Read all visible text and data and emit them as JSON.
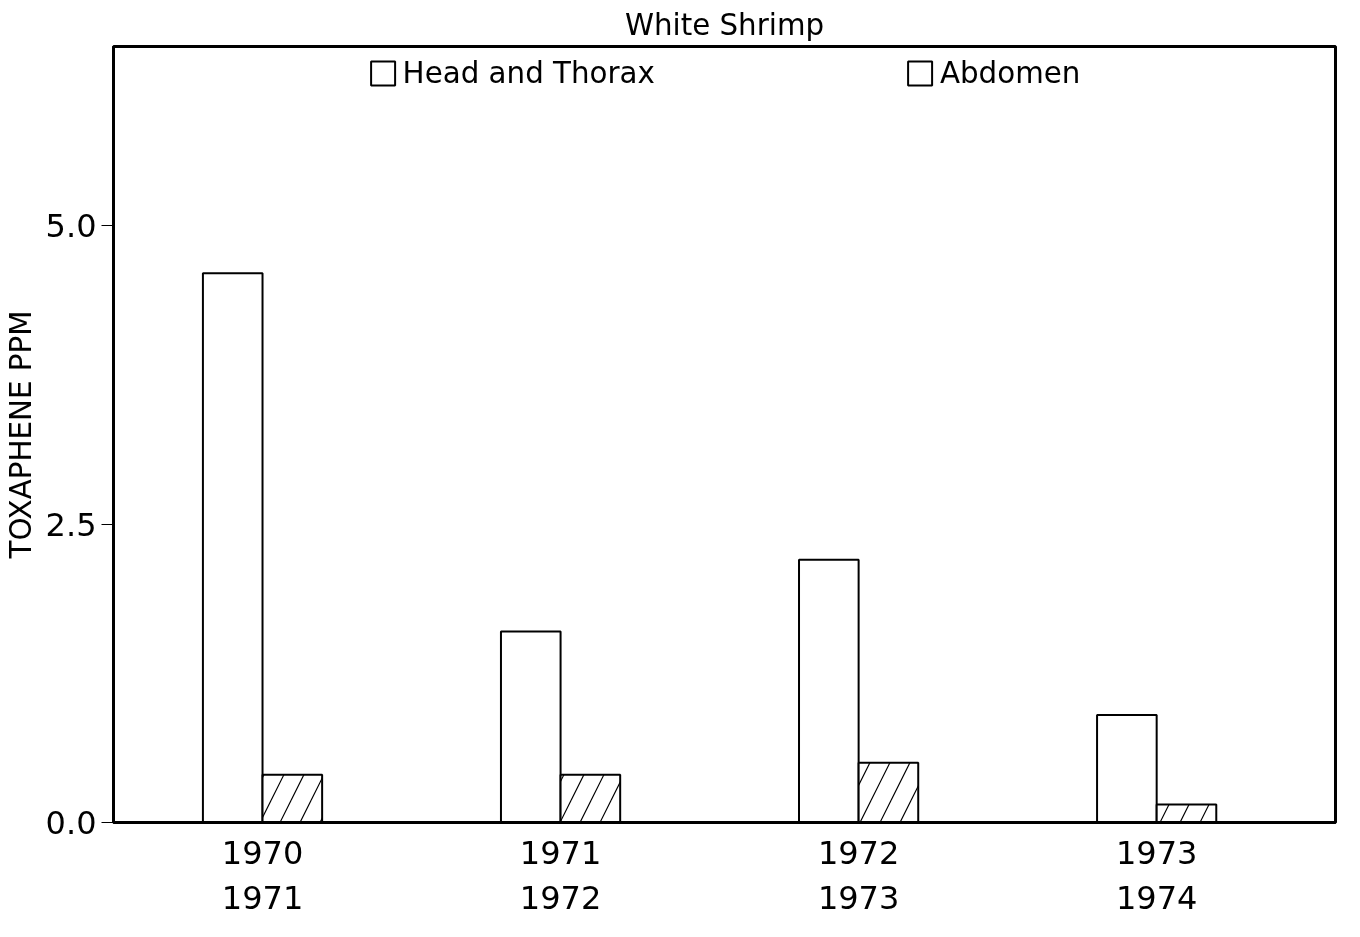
{
  "chart_data": {
    "type": "bar",
    "title": "White Shrimp",
    "ylabel": "TOXAPHENE PPM",
    "categories": [
      "1970\n1971",
      "1971\n1972",
      "1972\n1973",
      "1973\n1974"
    ],
    "series": [
      {
        "name": "Head and Thorax",
        "color": "#ffffff",
        "values": [
          4.6,
          1.6,
          2.2,
          0.9
        ]
      },
      {
        "name": "Abdomen",
        "color": "#ffffff",
        "values": [
          0.4,
          0.4,
          0.5,
          0.15
        ]
      }
    ],
    "ylim": [
      0,
      6.5
    ],
    "yticks": [
      {
        "value": 0,
        "label": "0.0"
      },
      {
        "value": 2.5,
        "label": "2.5"
      },
      {
        "value": 5,
        "label": "5.0"
      }
    ],
    "grid": false,
    "legend": "top"
  }
}
